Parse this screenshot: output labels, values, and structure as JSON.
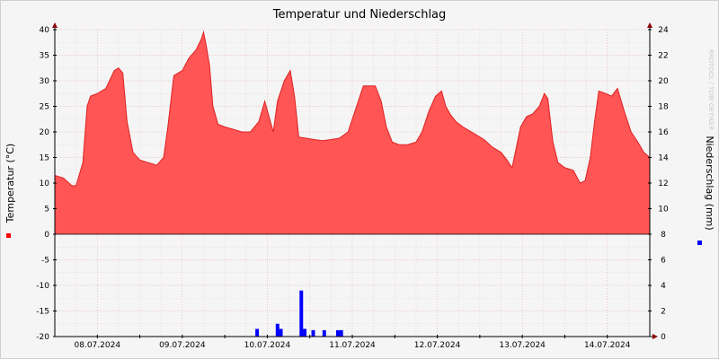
{
  "chart_data": {
    "type": "area",
    "title": "Temperatur und Niederschlag",
    "watermark": "RRDTOOL / TOBI OETIKER",
    "left_axis": {
      "label": "Temperatur (°C)",
      "ylim": [
        -20,
        40
      ],
      "ticks": [
        "40",
        "35",
        "30",
        "25",
        "20",
        "15",
        "10",
        "5",
        "0",
        "-5",
        "-10",
        "-15",
        "-20"
      ]
    },
    "right_axis": {
      "label": "Niederschlag (mm)",
      "ylim": [
        0,
        24
      ],
      "ticks": [
        "24",
        "22",
        "20",
        "18",
        "16",
        "14",
        "12",
        "10",
        "8",
        "6",
        "4",
        "2",
        "0"
      ]
    },
    "x_range_days": [
      0,
      7
    ],
    "x_ticks": [
      {
        "day": 0.5,
        "label": "08.07.2024"
      },
      {
        "day": 1.5,
        "label": "09.07.2024"
      },
      {
        "day": 2.5,
        "label": "10.07.2024"
      },
      {
        "day": 3.5,
        "label": "11.07.2024"
      },
      {
        "day": 4.5,
        "label": "12.07.2024"
      },
      {
        "day": 5.5,
        "label": "13.07.2024"
      },
      {
        "day": 6.5,
        "label": "14.07.2024"
      }
    ],
    "grid": true,
    "colors": {
      "temperature": "#ff5555",
      "temperature_edge": "#dd2222",
      "precipitation": "#0000ff",
      "grid": "#e3a0a0"
    },
    "series": [
      {
        "name": "Temperatur (°C)",
        "type": "area",
        "points": [
          [
            0.0,
            11.5
          ],
          [
            0.1,
            11.0
          ],
          [
            0.2,
            9.5
          ],
          [
            0.25,
            9.5
          ],
          [
            0.33,
            14.0
          ],
          [
            0.38,
            25.0
          ],
          [
            0.42,
            27.0
          ],
          [
            0.5,
            27.5
          ],
          [
            0.6,
            28.5
          ],
          [
            0.7,
            32.0
          ],
          [
            0.75,
            32.5
          ],
          [
            0.8,
            31.5
          ],
          [
            0.85,
            22.0
          ],
          [
            0.92,
            16.0
          ],
          [
            1.0,
            14.5
          ],
          [
            1.1,
            14.0
          ],
          [
            1.2,
            13.5
          ],
          [
            1.28,
            15.0
          ],
          [
            1.33,
            21.0
          ],
          [
            1.4,
            31.0
          ],
          [
            1.5,
            32.0
          ],
          [
            1.58,
            34.5
          ],
          [
            1.66,
            36.0
          ],
          [
            1.72,
            38.0
          ],
          [
            1.75,
            39.5
          ],
          [
            1.78,
            37.0
          ],
          [
            1.82,
            33.0
          ],
          [
            1.86,
            25.0
          ],
          [
            1.92,
            21.5
          ],
          [
            2.0,
            21.0
          ],
          [
            2.1,
            20.5
          ],
          [
            2.2,
            20.0
          ],
          [
            2.3,
            20.0
          ],
          [
            2.4,
            22.0
          ],
          [
            2.47,
            26.0
          ],
          [
            2.52,
            23.0
          ],
          [
            2.57,
            20.0
          ],
          [
            2.62,
            26.0
          ],
          [
            2.7,
            30.0
          ],
          [
            2.77,
            32.0
          ],
          [
            2.82,
            27.0
          ],
          [
            2.87,
            19.0
          ],
          [
            2.95,
            18.8
          ],
          [
            3.05,
            18.5
          ],
          [
            3.15,
            18.3
          ],
          [
            3.25,
            18.5
          ],
          [
            3.35,
            18.8
          ],
          [
            3.45,
            20.0
          ],
          [
            3.55,
            25.0
          ],
          [
            3.63,
            29.0
          ],
          [
            3.7,
            29.0
          ],
          [
            3.77,
            29.0
          ],
          [
            3.84,
            26.0
          ],
          [
            3.9,
            21.0
          ],
          [
            3.97,
            18.0
          ],
          [
            4.05,
            17.5
          ],
          [
            4.15,
            17.5
          ],
          [
            4.25,
            18.0
          ],
          [
            4.32,
            20.0
          ],
          [
            4.4,
            24.0
          ],
          [
            4.48,
            27.0
          ],
          [
            4.55,
            28.0
          ],
          [
            4.6,
            25.0
          ],
          [
            4.65,
            23.5
          ],
          [
            4.72,
            22.0
          ],
          [
            4.8,
            21.0
          ],
          [
            4.85,
            20.5
          ],
          [
            4.95,
            19.5
          ],
          [
            5.05,
            18.5
          ],
          [
            5.15,
            17.0
          ],
          [
            5.25,
            16.0
          ],
          [
            5.32,
            14.5
          ],
          [
            5.38,
            13.0
          ],
          [
            5.43,
            17.0
          ],
          [
            5.48,
            21.0
          ],
          [
            5.55,
            23.0
          ],
          [
            5.62,
            23.5
          ],
          [
            5.7,
            25.0
          ],
          [
            5.76,
            27.5
          ],
          [
            5.8,
            26.5
          ],
          [
            5.86,
            18.0
          ],
          [
            5.92,
            14.0
          ],
          [
            6.0,
            13.0
          ],
          [
            6.1,
            12.5
          ],
          [
            6.18,
            10.0
          ],
          [
            6.24,
            10.5
          ],
          [
            6.3,
            15.0
          ],
          [
            6.35,
            22.0
          ],
          [
            6.4,
            28.0
          ],
          [
            6.48,
            27.5
          ],
          [
            6.55,
            27.0
          ],
          [
            6.62,
            28.5
          ],
          [
            6.7,
            24.0
          ],
          [
            6.78,
            20.0
          ],
          [
            6.86,
            18.0
          ],
          [
            6.93,
            16.0
          ],
          [
            7.0,
            15.0
          ]
        ]
      },
      {
        "name": "Niederschlag (mm)",
        "type": "bar",
        "points": [
          [
            2.38,
            0.6
          ],
          [
            2.62,
            1.0
          ],
          [
            2.66,
            0.6
          ],
          [
            2.9,
            3.6
          ],
          [
            2.94,
            0.6
          ],
          [
            3.04,
            0.5
          ],
          [
            3.17,
            0.5
          ],
          [
            3.33,
            0.5
          ],
          [
            3.37,
            0.5
          ]
        ]
      }
    ]
  }
}
